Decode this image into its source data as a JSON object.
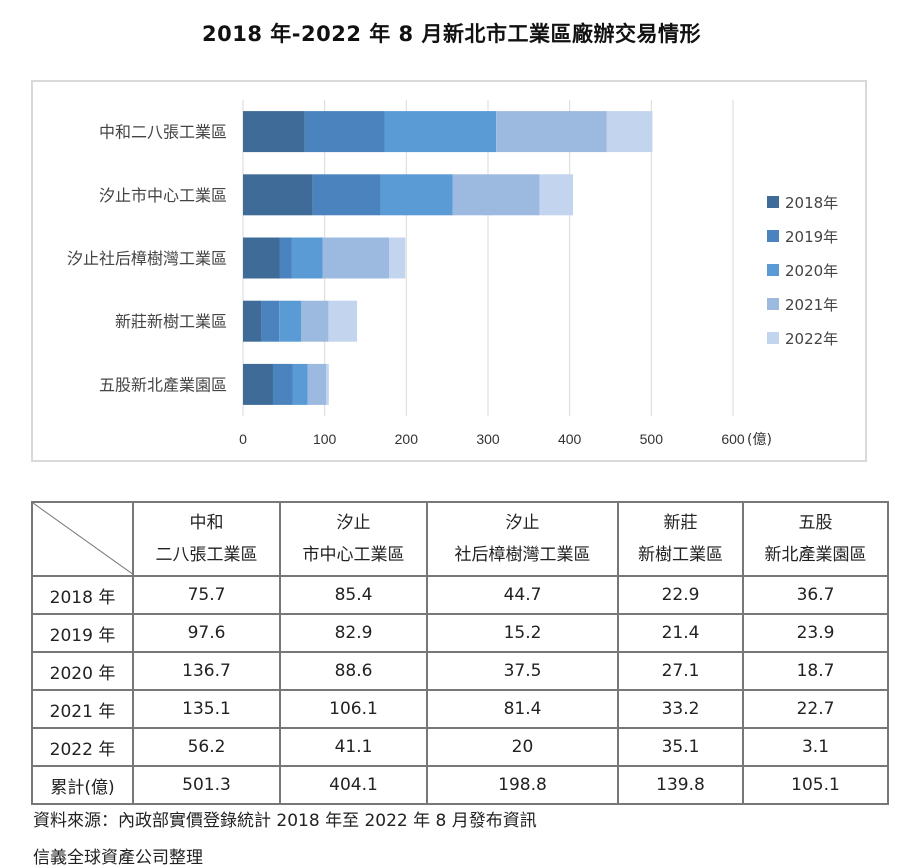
{
  "title": "2018 年-2022 年 8 月新北市工業區廠辦交易情形",
  "chart_data": {
    "type": "bar",
    "orientation": "horizontal",
    "stacked": true,
    "categories": [
      "中和二八張工業區",
      "汐止市中心工業區",
      "汐止社后樟樹灣工業區",
      "新莊新樹工業區",
      "五股新北產業園區"
    ],
    "series": [
      {
        "name": "2018年",
        "color": "#3e6b97",
        "values": [
          75.7,
          85.4,
          44.7,
          22.9,
          36.7
        ]
      },
      {
        "name": "2019年",
        "color": "#4a83bd",
        "values": [
          97.6,
          82.9,
          15.2,
          21.4,
          23.9
        ]
      },
      {
        "name": "2020年",
        "color": "#5b9bd5",
        "values": [
          136.7,
          88.6,
          37.5,
          27.1,
          18.7
        ]
      },
      {
        "name": "2021年",
        "color": "#9cb9df",
        "values": [
          135.1,
          106.1,
          81.4,
          33.2,
          22.7
        ]
      },
      {
        "name": "2022年",
        "color": "#c3d4ee",
        "values": [
          56.2,
          41.1,
          20,
          35.1,
          3.1
        ]
      }
    ],
    "xlim": [
      0,
      600
    ],
    "xticks": [
      "0",
      "100",
      "200",
      "300",
      "400",
      "500",
      "600"
    ],
    "xunit": "(億)",
    "grid": true,
    "legend_position": "right"
  },
  "table": {
    "header_line1": [
      "中和",
      "汐止",
      "汐止",
      "新莊",
      "五股"
    ],
    "header_line2": [
      "二八張工業區",
      "市中心工業區",
      "社后樟樹灣工業區",
      "新樹工業區",
      "新北產業園區"
    ],
    "rows": [
      {
        "label": "2018 年",
        "cells": [
          "75.7",
          "85.4",
          "44.7",
          "22.9",
          "36.7"
        ]
      },
      {
        "label": "2019 年",
        "cells": [
          "97.6",
          "82.9",
          "15.2",
          "21.4",
          "23.9"
        ]
      },
      {
        "label": "2020 年",
        "cells": [
          "136.7",
          "88.6",
          "37.5",
          "27.1",
          "18.7"
        ]
      },
      {
        "label": "2021 年",
        "cells": [
          "135.1",
          "106.1",
          "81.4",
          "33.2",
          "22.7"
        ]
      },
      {
        "label": "2022 年",
        "cells": [
          "56.2",
          "41.1",
          "20",
          "35.1",
          "3.1"
        ]
      },
      {
        "label": "累計(億)",
        "cells": [
          "501.3",
          "404.1",
          "198.8",
          "139.8",
          "105.1"
        ]
      }
    ]
  },
  "source_line1": "資料來源：內政部實價登錄統計 2018 年至 2022 年 8 月發布資訊",
  "source_line2": "信義全球資產公司整理"
}
